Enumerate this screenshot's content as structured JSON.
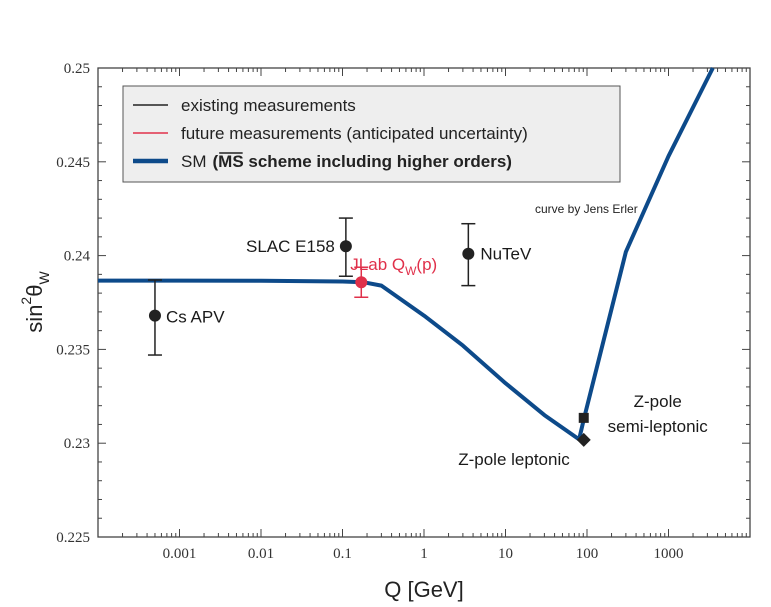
{
  "chart_data": {
    "type": "scatter",
    "title": "",
    "xlabel": "Q [GeV]",
    "ylabel_main": "sin",
    "ylabel_sup": "2",
    "ylabel_theta": "θ",
    "ylabel_sub": "W",
    "x_scale": "log",
    "xlim": [
      0.0001,
      10000
    ],
    "ylim": [
      0.225,
      0.25
    ],
    "x_ticks": [
      {
        "value": 0.001,
        "label": "0.001"
      },
      {
        "value": 0.01,
        "label": "0.01"
      },
      {
        "value": 0.1,
        "label": "0.1"
      },
      {
        "value": 1,
        "label": "1"
      },
      {
        "value": 10,
        "label": "10"
      },
      {
        "value": 100,
        "label": "100"
      },
      {
        "value": 1000,
        "label": "1000"
      }
    ],
    "y_ticks": [
      {
        "value": 0.225,
        "label": "0.225"
      },
      {
        "value": 0.23,
        "label": "0.23"
      },
      {
        "value": 0.235,
        "label": "0.235"
      },
      {
        "value": 0.24,
        "label": "0.24"
      },
      {
        "value": 0.245,
        "label": "0.245"
      },
      {
        "value": 0.25,
        "label": "0.25"
      }
    ],
    "colors": {
      "existing": "#222222",
      "future": "#e0304a",
      "sm": "#0d4a8a",
      "legend_bg": "#eeeeee"
    },
    "legend": {
      "existing": "existing measurements",
      "future": "future measurements (anticipated uncertainty)",
      "sm_prefix": "SM",
      "sm_bold": "(",
      "sm_msbar": "MS",
      "sm_rest": " scheme including higher orders)"
    },
    "credit": "curve by Jens Erler",
    "sm_curve": [
      {
        "x": 0.0001,
        "y": 0.23867
      },
      {
        "x": 0.001,
        "y": 0.23867
      },
      {
        "x": 0.01,
        "y": 0.23866
      },
      {
        "x": 0.1,
        "y": 0.23862
      },
      {
        "x": 0.18,
        "y": 0.23858
      },
      {
        "x": 0.3,
        "y": 0.2384
      },
      {
        "x": 1,
        "y": 0.2368
      },
      {
        "x": 3,
        "y": 0.2352
      },
      {
        "x": 10,
        "y": 0.2332
      },
      {
        "x": 30,
        "y": 0.2315
      },
      {
        "x": 80,
        "y": 0.2302
      },
      {
        "x": 91.2,
        "y": 0.23125
      },
      {
        "x": 300,
        "y": 0.2402
      },
      {
        "x": 1000,
        "y": 0.2453
      },
      {
        "x": 3500,
        "y": 0.25
      }
    ],
    "points": [
      {
        "name": "Cs APV",
        "label": "Cs APV",
        "x": 0.0005,
        "y": 0.2368,
        "err_up": 0.0019,
        "err_down": 0.0021,
        "kind": "existing",
        "marker": "circle",
        "label_pos": "right"
      },
      {
        "name": "SLAC E158",
        "label": "SLAC E158",
        "x": 0.11,
        "y": 0.2405,
        "err_up": 0.0015,
        "err_down": 0.0016,
        "kind": "existing",
        "marker": "circle",
        "label_pos": "left"
      },
      {
        "name": "JLab Qw(p)",
        "label_main": "JLab Q",
        "label_sub": "W",
        "label_tail": "(p)",
        "x": 0.17,
        "y": 0.23858,
        "err_up": 0.0008,
        "err_down": 0.0008,
        "kind": "future",
        "marker": "circle",
        "label_pos": "above-right"
      },
      {
        "name": "NuTeV",
        "label": "NuTeV",
        "x": 3.5,
        "y": 0.2401,
        "err_up": 0.0016,
        "err_down": 0.0017,
        "kind": "existing",
        "marker": "circle",
        "label_pos": "right"
      },
      {
        "name": "Z-pole leptonic",
        "label": "Z-pole leptonic",
        "x": 91.2,
        "y": 0.23018,
        "err_up": 0,
        "err_down": 0,
        "kind": "existing",
        "marker": "diamond",
        "label_pos": "left-below"
      },
      {
        "name": "Z-pole semi-leptonic",
        "label_line1": "Z-pole",
        "label_line2": "semi-leptonic",
        "x": 91.2,
        "y": 0.23135,
        "err_up": 0,
        "err_down": 0,
        "kind": "existing",
        "marker": "square",
        "label_pos": "right"
      }
    ]
  }
}
